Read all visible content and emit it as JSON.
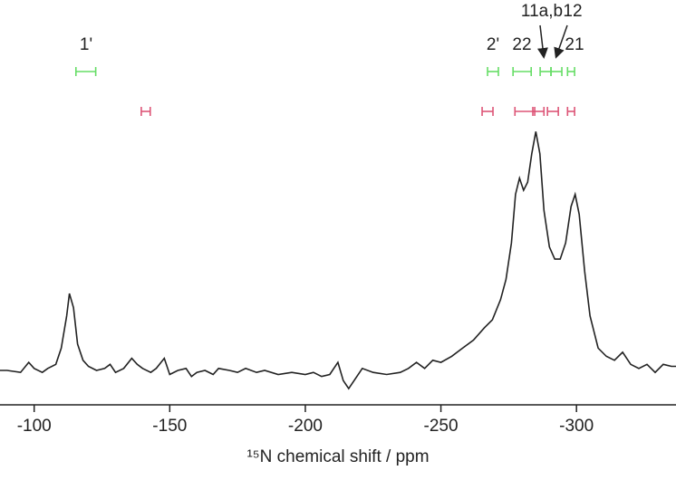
{
  "chart_data": {
    "type": "line",
    "xlabel": "¹⁵N chemical shift / ppm",
    "xlim": [
      -87.4,
      -336.7
    ],
    "xticks": [
      -100,
      -150,
      -200,
      -250,
      -300
    ],
    "ylim": [
      0,
      100
    ],
    "annotations": [
      "1'",
      "2'",
      "22",
      "11a,b",
      "12",
      "21"
    ],
    "x": [
      -87.4,
      -90,
      -95,
      -98,
      -100,
      -103,
      -105,
      -108,
      -110,
      -112,
      -113,
      -114.5,
      -116,
      -118,
      -120,
      -123,
      -126,
      -128,
      -130,
      -133,
      -136,
      -138,
      -140,
      -143,
      -145,
      -148,
      -150,
      -153,
      -156,
      -158,
      -160,
      -163,
      -166,
      -168,
      -172,
      -175,
      -178,
      -182,
      -185,
      -190,
      -195,
      -200,
      -203,
      -206,
      -209,
      -212,
      -214,
      -216,
      -218,
      -221,
      -225,
      -230,
      -235,
      -238,
      -241,
      -244,
      -247,
      -250,
      -254,
      -258,
      -262,
      -266,
      -269,
      -272,
      -274,
      -276,
      -277.5,
      -279,
      -280.5,
      -282,
      -283.5,
      -285,
      -286.5,
      -288,
      -290,
      -292,
      -294,
      -296,
      -298,
      -299.5,
      -301,
      -303,
      -305,
      -308,
      -311,
      -314,
      -317,
      -320,
      -323,
      -326,
      -329,
      -332,
      -335,
      -336.7
    ],
    "series": [
      {
        "color": "#222222",
        "values": [
          8.5,
          8.5,
          8,
          10.5,
          9,
          8,
          9,
          10,
          14,
          22,
          27.5,
          24,
          15,
          11,
          9.5,
          8.5,
          9,
          10,
          8,
          9,
          11.5,
          10,
          9,
          8,
          9,
          11.5,
          7.5,
          8.5,
          9,
          7,
          8,
          8.5,
          7.5,
          9,
          8.5,
          8,
          9,
          8,
          8.5,
          7.5,
          8,
          7.5,
          8,
          7,
          7.5,
          10.5,
          6,
          4,
          6,
          9,
          8,
          7.5,
          8,
          9,
          10.5,
          9,
          11,
          10.5,
          12,
          14,
          16,
          19,
          21,
          26,
          31,
          40,
          52,
          56,
          53,
          55,
          62,
          67.5,
          62,
          48,
          39,
          36,
          36,
          40,
          49,
          52,
          47,
          33,
          22,
          14,
          12,
          11,
          13,
          10,
          9,
          10,
          8,
          10,
          9.5,
          9.5
        ]
      }
    ],
    "intervals": [
      {
        "color": "#66dd66",
        "ranges": [
          [
            -115.4,
            -122.7
          ],
          [
            -267.2,
            -271.2
          ],
          [
            -276.6,
            -283.3
          ],
          [
            -286.6,
            -290.6
          ],
          [
            -290.6,
            -294.6
          ],
          [
            -296.7,
            -299.3
          ]
        ]
      },
      {
        "color": "#dd5577",
        "ranges": [
          [
            -139.5,
            -142.8
          ],
          [
            -265.2,
            -269.2
          ],
          [
            -277.3,
            -284.6
          ],
          [
            -283.9,
            -288
          ],
          [
            -289.3,
            -293.3
          ],
          [
            -296.7,
            -299.3
          ]
        ]
      }
    ]
  }
}
